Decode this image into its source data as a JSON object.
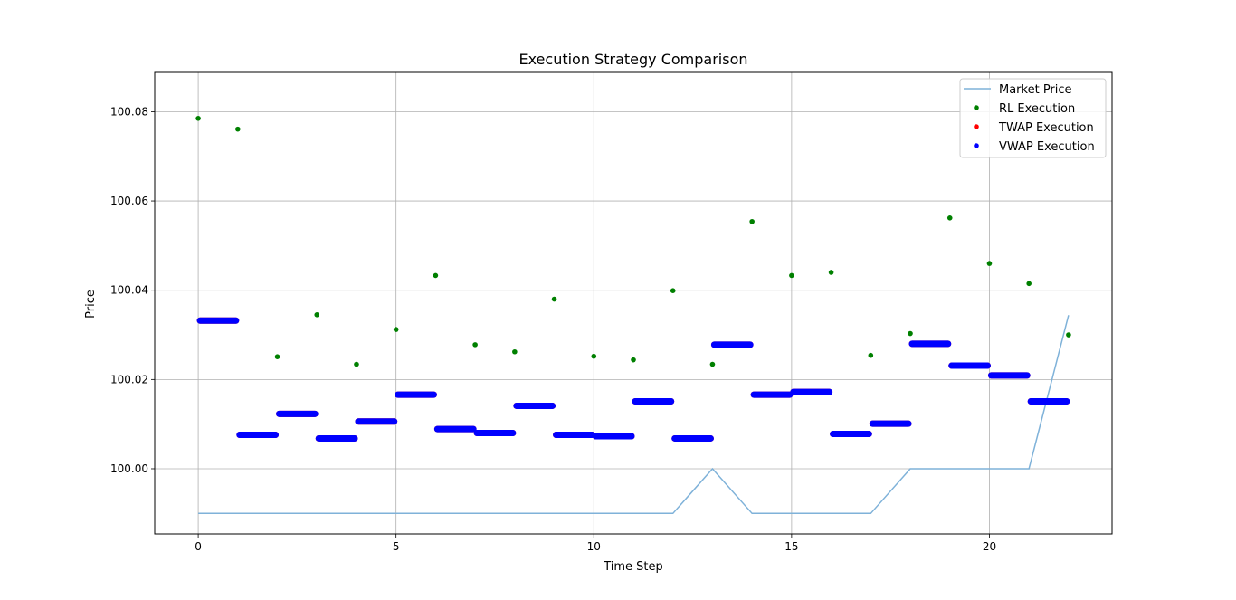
{
  "chart_data": {
    "type": "scatter",
    "title": "Execution Strategy Comparison",
    "xlabel": "Time Step",
    "ylabel": "Price",
    "xlim": [
      -1.1,
      23.1
    ],
    "ylim": [
      99.9854,
      100.0888
    ],
    "x_ticks": [
      0,
      5,
      10,
      15,
      20
    ],
    "y_ticks": [
      100.0,
      100.02,
      100.04,
      100.06,
      100.08
    ],
    "x_tick_labels": [
      "0",
      "5",
      "10",
      "15",
      "20"
    ],
    "y_tick_labels": [
      "100.00",
      "100.02",
      "100.04",
      "100.06",
      "100.08"
    ],
    "grid": true,
    "legend_position": "upper right",
    "series": [
      {
        "name": "Market Price",
        "kind": "line",
        "color": "#7fb2d9",
        "x": [
          0,
          1,
          2,
          3,
          4,
          5,
          6,
          7,
          8,
          9,
          10,
          11,
          12,
          13,
          14,
          15,
          16,
          17,
          18,
          19,
          20,
          21,
          22
        ],
        "y": [
          99.99,
          99.99,
          99.99,
          99.99,
          99.99,
          99.99,
          99.99,
          99.99,
          99.99,
          99.99,
          99.99,
          99.99,
          99.99,
          100.0,
          99.99,
          99.99,
          99.99,
          99.99,
          100.0,
          100.0,
          100.0,
          100.0,
          100.0344
        ]
      },
      {
        "name": "RL Execution",
        "kind": "points",
        "color": "#008000",
        "x": [
          0,
          1,
          2,
          3,
          4,
          5,
          6,
          7,
          8,
          9,
          10,
          11,
          12,
          13,
          14,
          15,
          16,
          17,
          18,
          19,
          20,
          21,
          22
        ],
        "y": [
          100.0785,
          100.0761,
          100.0251,
          100.0345,
          100.0234,
          100.0312,
          100.0433,
          100.0278,
          100.0262,
          100.038,
          100.0252,
          100.0244,
          100.0399,
          100.0234,
          100.0554,
          100.0433,
          100.044,
          100.0254,
          100.0303,
          100.0562,
          100.046,
          100.0415,
          100.03
        ]
      },
      {
        "name": "TWAP Execution",
        "kind": "segments",
        "color": "#ff0000",
        "x_start": [
          0,
          1,
          2,
          3,
          4,
          5,
          6,
          7,
          8,
          9,
          10,
          11,
          12,
          13,
          14,
          15,
          16,
          17,
          18,
          19,
          20,
          21
        ],
        "x_end": [
          1,
          2,
          3,
          4,
          5,
          6,
          7,
          8,
          9,
          10,
          11,
          12,
          13,
          14,
          15,
          16,
          17,
          18,
          19,
          20,
          21,
          22
        ],
        "y": [
          100.0332,
          100.0076,
          100.0123,
          100.0068,
          100.0106,
          100.0166,
          100.0089,
          100.008,
          100.0141,
          100.0076,
          100.0073,
          100.0151,
          100.0068,
          100.0278,
          100.0166,
          100.0172,
          100.0078,
          100.0101,
          100.028,
          100.0231,
          100.0209,
          100.0151
        ]
      },
      {
        "name": "VWAP Execution",
        "kind": "segments",
        "color": "#0000ff",
        "x_start": [
          0,
          1,
          2,
          3,
          4,
          5,
          6,
          7,
          8,
          9,
          10,
          11,
          12,
          13,
          14,
          15,
          16,
          17,
          18,
          19,
          20,
          21
        ],
        "x_end": [
          1,
          2,
          3,
          4,
          5,
          6,
          7,
          8,
          9,
          10,
          11,
          12,
          13,
          14,
          15,
          16,
          17,
          18,
          19,
          20,
          21,
          22
        ],
        "y": [
          100.0332,
          100.0076,
          100.0123,
          100.0068,
          100.0106,
          100.0166,
          100.0089,
          100.008,
          100.0141,
          100.0076,
          100.0073,
          100.0151,
          100.0068,
          100.0278,
          100.0166,
          100.0172,
          100.0078,
          100.0101,
          100.028,
          100.0231,
          100.0209,
          100.0151
        ]
      }
    ]
  }
}
